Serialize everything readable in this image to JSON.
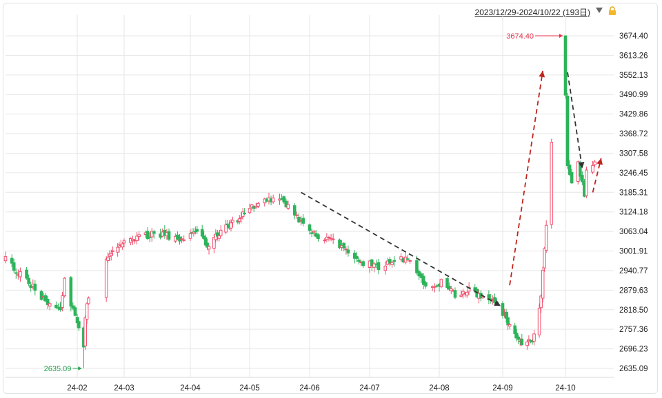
{
  "header": {
    "range_label": "2023/12/29-2024/10/22 (193日)",
    "caret_icon": "triangle-down-icon",
    "lock_icon": "lock-icon"
  },
  "colors": {
    "up": "#f0506e",
    "down": "#2db35a",
    "grid": "#e6e6e6",
    "max_label": "#e8324a",
    "min_label": "#22a24f",
    "arrow_red": "#c0241c",
    "arrow_dark": "#333333"
  },
  "chart_data": {
    "type": "candlestick",
    "x_ticks": [
      "24-02",
      "24-03",
      "24-04",
      "24-05",
      "24-06",
      "24-07",
      "24-08",
      "24-09",
      "24-10"
    ],
    "y_ticks": [
      "3674.40",
      "3613.26",
      "3552.13",
      "3490.99",
      "3429.86",
      "3368.72",
      "3307.58",
      "3246.45",
      "3185.31",
      "3124.18",
      "3063.04",
      "3001.91",
      "2940.77",
      "2879.63",
      "2818.50",
      "2757.36",
      "2696.23",
      "2635.09"
    ],
    "ylim": [
      2635.09,
      3674.4
    ],
    "max_label": "3674.40",
    "min_label": "2635.09",
    "close_path": [
      [
        "2023-12-29",
        2975
      ],
      [
        "2024-01-05",
        2929
      ],
      [
        "2024-01-12",
        2881
      ],
      [
        "2024-01-19",
        2832
      ],
      [
        "2024-01-24",
        2820
      ],
      [
        "2024-01-26",
        2910
      ],
      [
        "2024-02-01",
        2770
      ],
      [
        "2024-02-05",
        2702
      ],
      [
        "2024-02-06",
        2789
      ],
      [
        "2024-02-08",
        2865
      ],
      [
        "2024-02-23",
        3004
      ],
      [
        "2024-03-01",
        3027
      ],
      [
        "2024-03-08",
        3046
      ],
      [
        "2024-03-15",
        3054
      ],
      [
        "2024-03-22",
        3048
      ],
      [
        "2024-03-29",
        3041
      ],
      [
        "2024-04-03",
        3069
      ],
      [
        "2024-04-12",
        3019
      ],
      [
        "2024-04-19",
        3065
      ],
      [
        "2024-04-26",
        3088
      ],
      [
        "2024-05-10",
        3154
      ],
      [
        "2024-05-20",
        3171
      ],
      [
        "2024-05-31",
        3087
      ],
      [
        "2024-06-07",
        3051
      ],
      [
        "2024-06-14",
        3033
      ],
      [
        "2024-06-21",
        2998
      ],
      [
        "2024-06-28",
        2967
      ],
      [
        "2024-07-05",
        2950
      ],
      [
        "2024-07-12",
        2971
      ],
      [
        "2024-07-19",
        2982
      ],
      [
        "2024-07-26",
        2891
      ],
      [
        "2024-08-02",
        2905
      ],
      [
        "2024-08-09",
        2862
      ],
      [
        "2024-08-16",
        2879
      ],
      [
        "2024-08-23",
        2855
      ],
      [
        "2024-08-30",
        2842
      ],
      [
        "2024-09-06",
        2766
      ],
      [
        "2024-09-13",
        2704
      ],
      [
        "2024-09-18",
        2717
      ],
      [
        "2024-09-20",
        2736
      ],
      [
        "2024-09-24",
        2864
      ],
      [
        "2024-09-26",
        3000
      ],
      [
        "2024-09-27",
        3088
      ],
      [
        "2024-09-30",
        3336
      ],
      [
        "2024-10-08",
        3489
      ],
      [
        "2024-10-09",
        3258
      ],
      [
        "2024-10-11",
        3217
      ],
      [
        "2024-10-14",
        3284
      ],
      [
        "2024-10-17",
        3169
      ],
      [
        "2024-10-18",
        3261
      ],
      [
        "2024-10-22",
        3285
      ]
    ],
    "annotations": [
      {
        "style": "dashed-arrow",
        "color": "dark",
        "from": [
          "2024-05-30",
          3185
        ],
        "to": [
          "2024-09-01",
          2830
        ]
      },
      {
        "style": "dashed-arrow",
        "color": "red",
        "from": [
          "2024-09-06",
          2895
        ],
        "to": [
          "2024-09-25",
          3565
        ]
      },
      {
        "style": "dashed-arrow",
        "color": "dark",
        "from": [
          "2024-10-09",
          3560
        ],
        "to": [
          "2024-10-16",
          3260
        ]
      },
      {
        "style": "dashed-arrow",
        "color": "red",
        "from": [
          "2024-10-21",
          3185
        ],
        "to": [
          "2024-10-25",
          3292
        ]
      }
    ],
    "grid": true
  }
}
